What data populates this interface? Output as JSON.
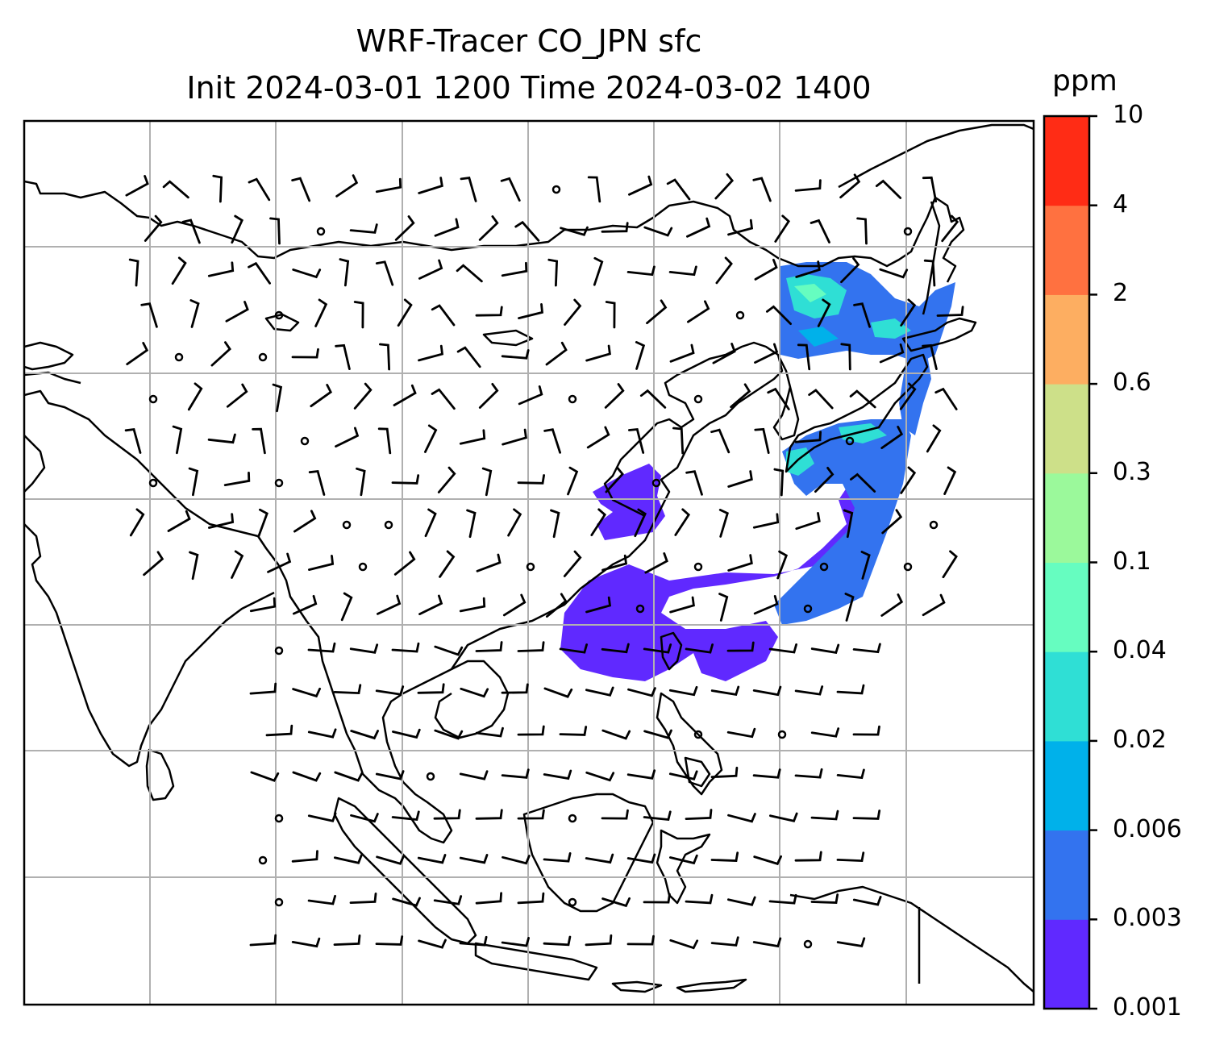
{
  "title": {
    "line1": "WRF-Tracer CO_JPN sfc",
    "line2": "Init 2024-03-01 1200 Time 2024-03-02 1400"
  },
  "colorbar": {
    "unit": "ppm",
    "levels": [
      "0.001",
      "0.003",
      "0.006",
      "0.02",
      "0.04",
      "0.1",
      "0.3",
      "0.6",
      "2",
      "4",
      "10"
    ],
    "colors": [
      "#6029ff",
      "#3373ef",
      "#00b1ea",
      "#2fdfd5",
      "#66fdc0",
      "#9bf99b",
      "#cde089",
      "#fdae61",
      "#ff7140",
      "#ff2c15"
    ]
  },
  "map": {
    "region": "East Asia / Southeast Asia",
    "gridlines": true,
    "barb_color": "#000000",
    "coastline_color": "#000000"
  }
}
